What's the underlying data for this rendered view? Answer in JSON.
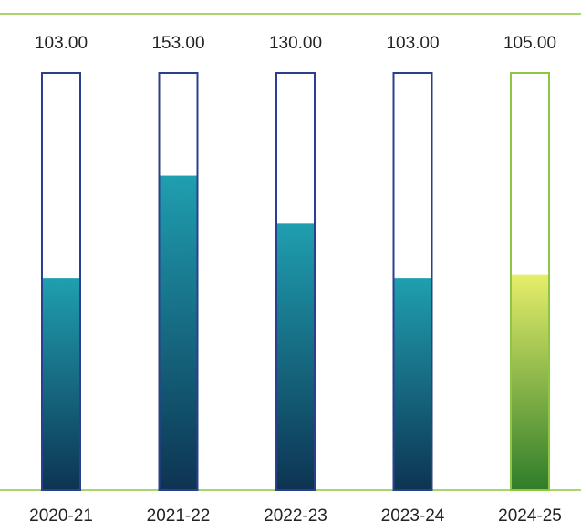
{
  "chart_data": {
    "type": "tube",
    "categories": [
      "2020-21",
      "2021-22",
      "2022-23",
      "2023-24",
      "2024-25"
    ],
    "values": [
      103,
      153,
      130,
      103,
      105
    ],
    "value_labels": [
      "103.00",
      "153.00",
      "130.00",
      "103.00",
      "105.00"
    ],
    "colors": [
      "#1f9fb0",
      "#1f9fb0",
      "#1f9fb0",
      "#1f9fb0",
      "#e6ee6a"
    ],
    "bottom_colors": [
      "#0d3452",
      "#0d3452",
      "#0d3452",
      "#0d3452",
      "#2f7d2a"
    ],
    "outline_colors": [
      "#2a3f8f",
      "#2a3f8f",
      "#2a3f8f",
      "#2a3f8f",
      "#8dc63f"
    ],
    "ylim": [
      0,
      203
    ]
  }
}
